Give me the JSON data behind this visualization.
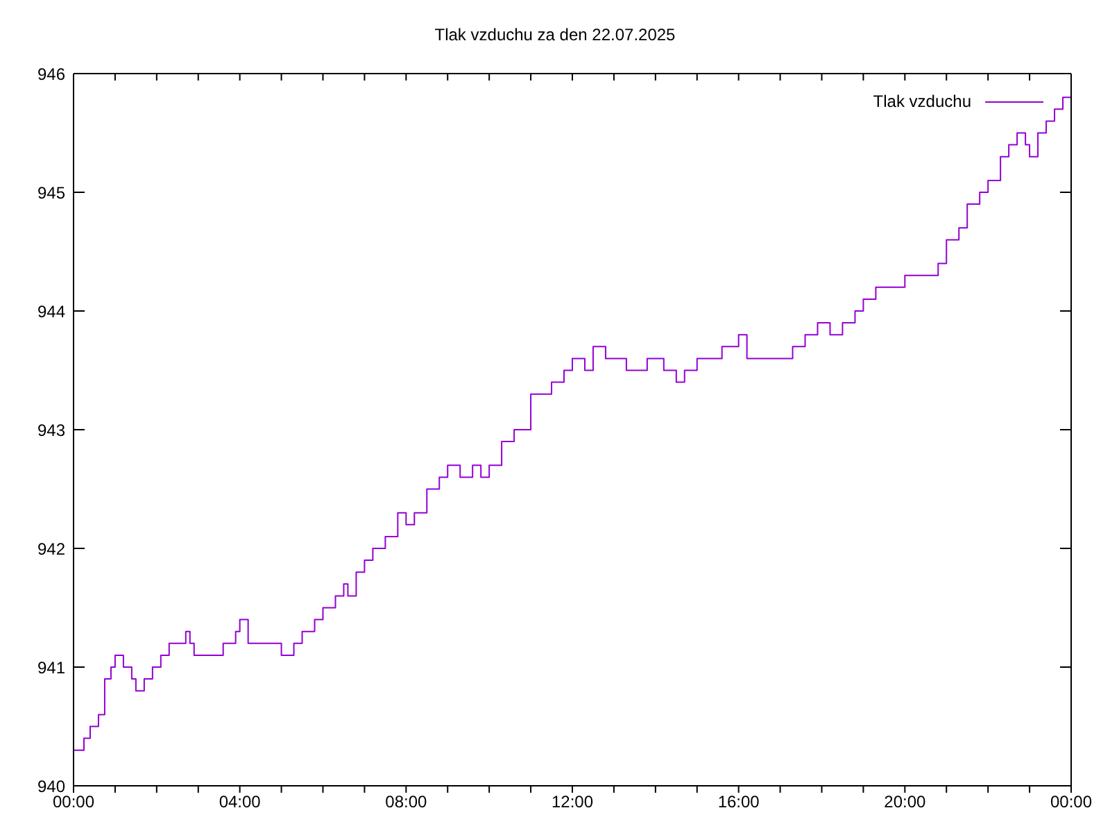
{
  "chart_data": {
    "type": "step",
    "title": "Tlak vzduchu za den 22.07.2025",
    "x": [
      0,
      0.25,
      0.4,
      0.6,
      0.75,
      0.9,
      1.0,
      1.2,
      1.4,
      1.5,
      1.7,
      1.9,
      2.1,
      2.3,
      2.7,
      2.8,
      2.9,
      3.5,
      3.6,
      3.9,
      4.0,
      4.2,
      4.8,
      5.0,
      5.3,
      5.5,
      5.8,
      6.0,
      6.3,
      6.5,
      6.6,
      6.8,
      7.0,
      7.2,
      7.5,
      7.8,
      8.0,
      8.2,
      8.5,
      8.8,
      9.0,
      9.3,
      9.6,
      9.8,
      10.0,
      10.3,
      10.6,
      11.0,
      11.2,
      11.5,
      11.8,
      12.0,
      12.3,
      12.5,
      12.8,
      13.0,
      13.3,
      13.8,
      14.2,
      14.5,
      14.7,
      15.0,
      15.3,
      15.6,
      16.0,
      16.2,
      16.5,
      17.0,
      17.3,
      17.6,
      17.9,
      18.2,
      18.5,
      18.8,
      19.0,
      19.3,
      19.6,
      20.0,
      20.4,
      20.8,
      21.0,
      21.3,
      21.5,
      21.8,
      22.0,
      22.3,
      22.5,
      22.7,
      22.9,
      23.0,
      23.2,
      23.4,
      23.6,
      23.8,
      24.0
    ],
    "series": [
      {
        "name": "Tlak vzduchu",
        "color": "#9400d3",
        "values": [
          940.3,
          940.4,
          940.5,
          940.6,
          940.9,
          941.0,
          941.1,
          941.0,
          940.9,
          940.8,
          940.9,
          941.0,
          941.1,
          941.2,
          941.3,
          941.2,
          941.1,
          941.1,
          941.2,
          941.3,
          941.4,
          941.2,
          941.2,
          941.1,
          941.2,
          941.3,
          941.4,
          941.5,
          941.6,
          941.7,
          941.6,
          941.8,
          941.9,
          942.0,
          942.1,
          942.3,
          942.2,
          942.3,
          942.5,
          942.6,
          942.7,
          942.6,
          942.7,
          942.6,
          942.7,
          942.9,
          943.0,
          943.3,
          943.3,
          943.4,
          943.5,
          943.6,
          943.5,
          943.7,
          943.6,
          943.6,
          943.5,
          943.6,
          943.5,
          943.4,
          943.5,
          943.6,
          943.6,
          943.7,
          943.8,
          943.6,
          943.6,
          943.6,
          943.7,
          943.8,
          943.9,
          943.8,
          943.9,
          944.0,
          944.1,
          944.2,
          944.2,
          944.3,
          944.3,
          944.4,
          944.6,
          944.7,
          944.9,
          945.0,
          945.1,
          945.3,
          945.4,
          945.5,
          945.4,
          945.3,
          945.5,
          945.6,
          945.7,
          945.8,
          945.8
        ]
      }
    ],
    "xlim": [
      0,
      24
    ],
    "xticks": [
      {
        "value": 0,
        "label": "00:00"
      },
      {
        "value": 1,
        "label": null
      },
      {
        "value": 2,
        "label": null
      },
      {
        "value": 3,
        "label": null
      },
      {
        "value": 4,
        "label": "04:00"
      },
      {
        "value": 5,
        "label": null
      },
      {
        "value": 6,
        "label": null
      },
      {
        "value": 7,
        "label": null
      },
      {
        "value": 8,
        "label": "08:00"
      },
      {
        "value": 9,
        "label": null
      },
      {
        "value": 10,
        "label": null
      },
      {
        "value": 11,
        "label": null
      },
      {
        "value": 12,
        "label": "12:00"
      },
      {
        "value": 13,
        "label": null
      },
      {
        "value": 14,
        "label": null
      },
      {
        "value": 15,
        "label": null
      },
      {
        "value": 16,
        "label": "16:00"
      },
      {
        "value": 17,
        "label": null
      },
      {
        "value": 18,
        "label": null
      },
      {
        "value": 19,
        "label": null
      },
      {
        "value": 20,
        "label": "20:00"
      },
      {
        "value": 21,
        "label": null
      },
      {
        "value": 22,
        "label": null
      },
      {
        "value": 23,
        "label": null
      },
      {
        "value": 24,
        "label": "00:00"
      }
    ],
    "ylim": [
      940,
      946
    ],
    "yticks": [
      940,
      941,
      942,
      943,
      944,
      945,
      946
    ],
    "legend": "top right"
  }
}
